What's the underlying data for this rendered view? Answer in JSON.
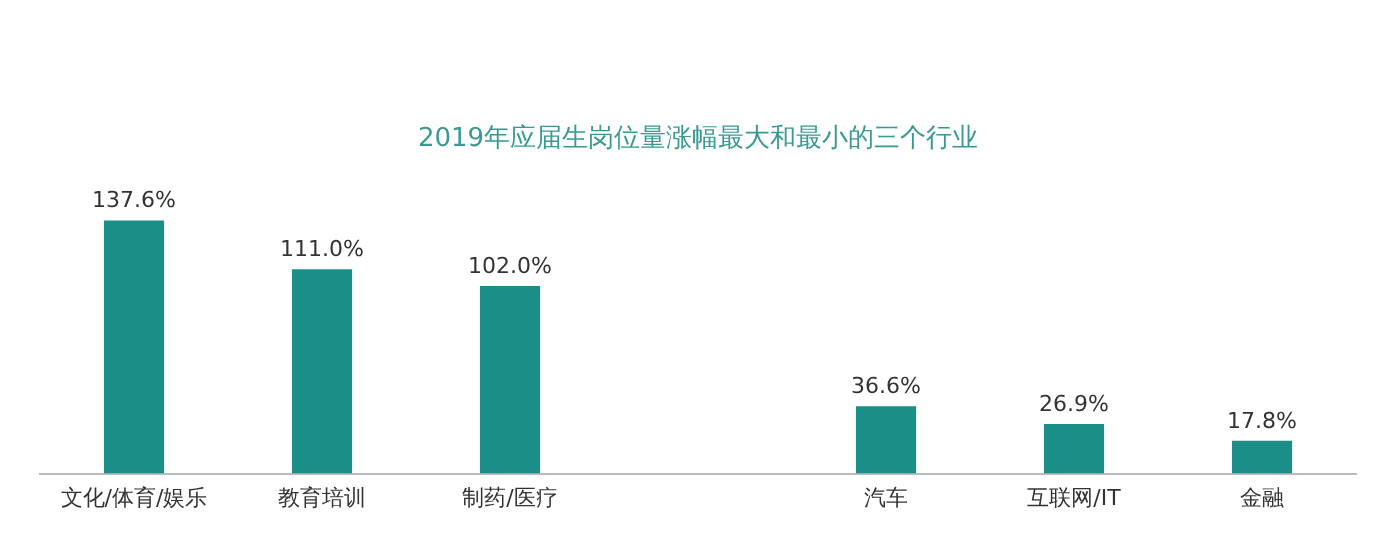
{
  "chart_data": {
    "type": "bar",
    "title": "2019年应届生岗位量涨幅最大和最小的三个行业",
    "categories": [
      "文化/体育/娱乐",
      "教育培训",
      "制药/医疗",
      null,
      "汽车",
      "互联网/IT",
      "金融"
    ],
    "values": [
      137.6,
      111.0,
      102.0,
      null,
      36.6,
      26.9,
      17.8
    ],
    "value_labels": [
      "137.6%",
      "111.0%",
      "102.0%",
      null,
      "36.6%",
      "26.9%",
      "17.8%"
    ],
    "color": "#1b8f87",
    "grid": false,
    "legend": false
  }
}
